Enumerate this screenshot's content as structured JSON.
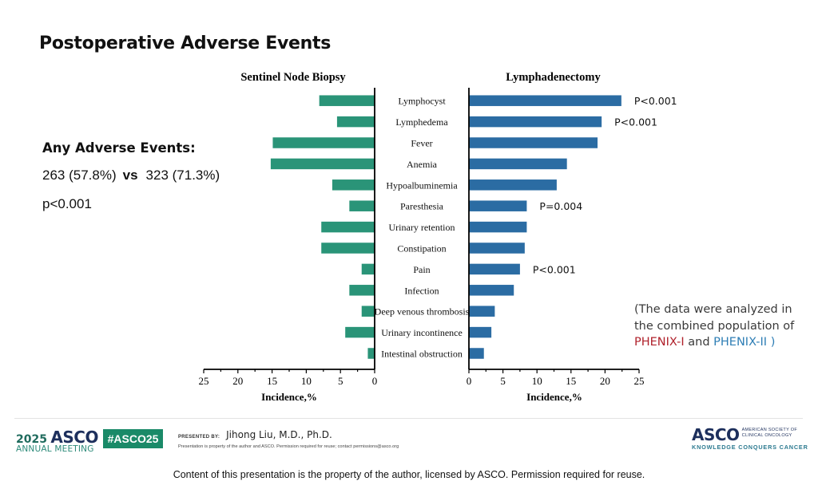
{
  "slide": {
    "title": "Postoperative Adverse Events",
    "any_ae": {
      "heading": "Any Adverse Events:",
      "snb": "263 (57.8%)",
      "vs": "vs",
      "lnd": "323 (71.3%)",
      "p": "p<0.001"
    },
    "note": {
      "line1": "(The data were analyzed in",
      "line2": "the combined population of",
      "trial1": "PHENIX-I",
      "and": " and ",
      "trial2": "PHENIX-II )"
    },
    "colors": {
      "snb_bar": "#2a9478",
      "lnd_bar": "#2b6ca3",
      "trial1": "#b0212b",
      "trial2": "#2e7eb5",
      "hashtag_bg": "#1a8a68"
    }
  },
  "footer": {
    "year": "2025",
    "asco": "ASCO",
    "meeting": "ANNUAL MEETING",
    "hashtag": "#ASCO25",
    "presented_label": "PRESENTED BY:",
    "presenter": "Jihong Liu, M.D., Ph.D.",
    "fineprint": "Presentation is property of the author and ASCO. Permission required for reuse; contact permissions@asco.org",
    "org_logo": "ASCO",
    "org_name_1": "AMERICAN SOCIETY OF",
    "org_name_2": "CLINICAL ONCOLOGY",
    "org_tagline": "KNOWLEDGE CONQUERS CANCER",
    "copyright": "Content of this presentation is the property of the author, licensed by ASCO. Permission required for reuse."
  },
  "chart_data": {
    "type": "bar",
    "orientation": "horizontal-butterfly",
    "categories": [
      "Lymphocyst",
      "Lymphedema",
      "Fever",
      "Anemia",
      "Hypoalbuminemia",
      "Paresthesia",
      "Urinary retention",
      "Constipation",
      "Pain",
      "Infection",
      "Deep venous thrombosis",
      "Urinary incontinence",
      "Intestinal obstruction"
    ],
    "series": [
      {
        "name": "Sentinel Node Biopsy",
        "side": "left",
        "values": [
          8.1,
          5.5,
          14.9,
          15.2,
          6.2,
          3.7,
          7.8,
          7.8,
          1.9,
          3.7,
          1.9,
          4.3,
          1.0
        ]
      },
      {
        "name": "Lymphadenectomy",
        "side": "right",
        "values": [
          22.4,
          19.5,
          18.9,
          14.4,
          12.9,
          8.5,
          8.5,
          8.2,
          7.5,
          6.6,
          3.8,
          3.3,
          2.2
        ]
      }
    ],
    "annotations": [
      {
        "category": "Lymphocyst",
        "text": "P<0.001"
      },
      {
        "category": "Lymphedema",
        "text": "P<0.001"
      },
      {
        "category": "Paresthesia",
        "text": "P=0.004"
      },
      {
        "category": "Pain",
        "text": "P<0.001"
      }
    ],
    "xlabel": "Incidence,%",
    "xlim": [
      0,
      25
    ],
    "xticks": [
      0,
      5,
      10,
      15,
      20,
      25
    ],
    "grid": false
  }
}
